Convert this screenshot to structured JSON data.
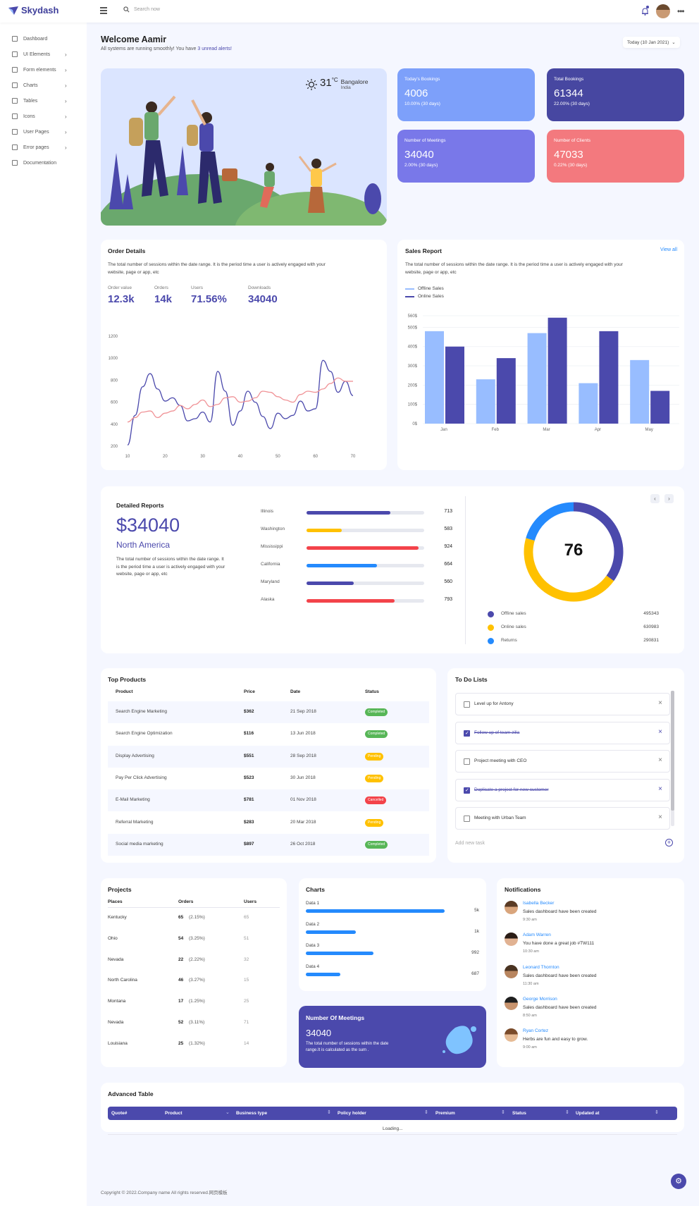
{
  "brand": {
    "name": "Skydash"
  },
  "header": {
    "search_placeholder": "Search now"
  },
  "sidebar": {
    "items": [
      {
        "label": "Dashboard",
        "icon": "dashboard-icon",
        "chevron": false
      },
      {
        "label": "UI Elements",
        "icon": "layers-icon",
        "chevron": true
      },
      {
        "label": "Form elements",
        "icon": "form-icon",
        "chevron": true
      },
      {
        "label": "Charts",
        "icon": "chart-icon",
        "chevron": true
      },
      {
        "label": "Tables",
        "icon": "table-icon",
        "chevron": true
      },
      {
        "label": "Icons",
        "icon": "icons-icon",
        "chevron": true
      },
      {
        "label": "User Pages",
        "icon": "user-icon",
        "chevron": true
      },
      {
        "label": "Error pages",
        "icon": "error-icon",
        "chevron": true
      },
      {
        "label": "Documentation",
        "icon": "doc-icon",
        "chevron": false
      }
    ]
  },
  "welcome": {
    "title": "Welcome Aamir",
    "subtitle_pre": "All systems are running smoothly! You have ",
    "subtitle_link": "3 unread alerts!",
    "date_label": "Today (10 Jan 2021)"
  },
  "weather": {
    "temp": "31",
    "unit": "C",
    "city": "Bangalore",
    "country": "India"
  },
  "stats": [
    {
      "label": "Today's Bookings",
      "value": "4006",
      "sub": "10.00% (30 days)",
      "color": "#7da0fa"
    },
    {
      "label": "Total Bookings",
      "value": "61344",
      "sub": "22.00% (30 days)",
      "color": "#4747a1"
    },
    {
      "label": "Number of Meetings",
      "value": "34040",
      "sub": "2.00% (30 days)",
      "color": "#7978e9"
    },
    {
      "label": "Number of Clients",
      "value": "47033",
      "sub": "0.22% (30 days)",
      "color": "#f3797e"
    }
  ],
  "order_details": {
    "title": "Order Details",
    "desc1": "The total number of sessions within the date range. It is the period time a user is actively engaged with your",
    "desc2": "website, page or app, etc",
    "metrics": [
      {
        "label": "Order value",
        "value": "12.3k"
      },
      {
        "label": "Orders",
        "value": "14k"
      },
      {
        "label": "Users",
        "value": "71.56%"
      },
      {
        "label": "Downloads",
        "value": "34040"
      }
    ]
  },
  "sales_report": {
    "title": "Sales Report",
    "view_all": "View all",
    "desc1": "The total number of sessions within the date range. It is the period time a user is actively engaged with your",
    "desc2": "website, page or app, etc"
  },
  "chart_data": [
    {
      "type": "line",
      "x": [
        10,
        12,
        14,
        16,
        18,
        20,
        22,
        24,
        26,
        28,
        30,
        32,
        34,
        36,
        38,
        40,
        42,
        44,
        46,
        48,
        50,
        52,
        54,
        56,
        58,
        60,
        62,
        64,
        66,
        68,
        70
      ],
      "series": [
        {
          "color": "#4b49ac",
          "values": [
            210,
            480,
            740,
            860,
            720,
            610,
            640,
            570,
            430,
            450,
            510,
            420,
            880,
            700,
            390,
            520,
            700,
            600,
            470,
            360,
            500,
            450,
            480,
            610,
            520,
            540,
            980,
            880,
            690,
            790,
            660
          ]
        },
        {
          "color": "#f09397",
          "values": [
            420,
            460,
            510,
            520,
            460,
            500,
            520,
            570,
            540,
            580,
            620,
            560,
            580,
            640,
            650,
            600,
            610,
            640,
            700,
            690,
            650,
            620,
            600,
            670,
            700,
            690,
            720,
            770,
            820,
            790,
            790
          ]
        }
      ],
      "xticks": [
        "10",
        "20",
        "30",
        "40",
        "50",
        "60",
        "70"
      ],
      "yticks": [
        "200",
        "400",
        "600",
        "800",
        "1000",
        "1200"
      ],
      "ylim": [
        200,
        1200
      ]
    },
    {
      "type": "bar",
      "categories": [
        "Jan",
        "Feb",
        "Mar",
        "Apr",
        "May"
      ],
      "series": [
        {
          "name": "Offline Sales",
          "color": "#98bdff",
          "values": [
            480,
            230,
            470,
            210,
            330
          ]
        },
        {
          "name": "Online Sales",
          "color": "#4b49ac",
          "values": [
            400,
            340,
            550,
            480,
            170
          ]
        }
      ],
      "yticks": [
        "0$",
        "100$",
        "200$",
        "300$",
        "400$",
        "500$",
        "560$"
      ],
      "ylim": [
        0,
        560
      ]
    },
    {
      "type": "pie",
      "center_label": "76",
      "slices": [
        {
          "label": "Offline sales",
          "value": 495343,
          "color": "#4b49ac"
        },
        {
          "label": "Online sales",
          "value": 630983,
          "color": "#ffc100"
        },
        {
          "label": "Returns",
          "value": 290831,
          "color": "#248afd"
        }
      ]
    }
  ],
  "detailed_reports": {
    "title": "Detailed Reports",
    "amount": "$34040",
    "region": "North America",
    "desc": [
      "The total number of sessions within the date range. It",
      "is the period time a user is actively engaged with your",
      "website, page or app, etc"
    ],
    "states": [
      {
        "name": "Illinois",
        "value": "713",
        "pct": 0.71,
        "color": "#4b49ac"
      },
      {
        "name": "Washington",
        "value": "583",
        "pct": 0.3,
        "color": "#ffc100"
      },
      {
        "name": "Mississippi",
        "value": "924",
        "pct": 0.95,
        "color": "#f3434a"
      },
      {
        "name": "California",
        "value": "664",
        "pct": 0.6,
        "color": "#248afd"
      },
      {
        "name": "Maryland",
        "value": "560",
        "pct": 0.4,
        "color": "#4b49ac"
      },
      {
        "name": "Alaska",
        "value": "793",
        "pct": 0.75,
        "color": "#f3434a"
      }
    ]
  },
  "top_products": {
    "title": "Top Products",
    "headers": [
      "Product",
      "Price",
      "Date",
      "Status"
    ],
    "rows": [
      {
        "product": "Search Engine Marketing",
        "price": "$362",
        "date": "21 Sep 2018",
        "status": "Completed",
        "color": "#57b657"
      },
      {
        "product": "Search Engine Optimization",
        "price": "$116",
        "date": "13 Jun 2018",
        "status": "Completed",
        "color": "#57b657"
      },
      {
        "product": "Display Advertising",
        "price": "$551",
        "date": "28 Sep 2018",
        "status": "Pending",
        "color": "#ffc100"
      },
      {
        "product": "Pay Per Click Advertising",
        "price": "$523",
        "date": "30 Jun 2018",
        "status": "Pending",
        "color": "#ffc100"
      },
      {
        "product": "E-Mail Marketing",
        "price": "$781",
        "date": "01 Nov 2018",
        "status": "Cancelled",
        "color": "#f3434a"
      },
      {
        "product": "Referral Marketing",
        "price": "$283",
        "date": "20 Mar 2018",
        "status": "Pending",
        "color": "#ffc100"
      },
      {
        "product": "Social media marketing",
        "price": "$897",
        "date": "26 Oct 2018",
        "status": "Completed",
        "color": "#57b657"
      }
    ]
  },
  "todo": {
    "title": "To Do Lists",
    "items": [
      {
        "text": "Level up for Antony",
        "done": false
      },
      {
        "text": "Follow up of team zilla",
        "done": true
      },
      {
        "text": "Project meeting with CEO",
        "done": false
      },
      {
        "text": "Duplicate a project for new customer",
        "done": true
      },
      {
        "text": "Meeting with Urban Team",
        "done": false
      }
    ],
    "add_placeholder": "Add new task"
  },
  "projects": {
    "title": "Projects",
    "headers": [
      "Places",
      "Orders",
      "Users"
    ],
    "rows": [
      {
        "place": "Kentucky",
        "orders": "65",
        "pct": "(2.15%)",
        "users": "65"
      },
      {
        "place": "Ohio",
        "orders": "54",
        "pct": "(3.25%)",
        "users": "51"
      },
      {
        "place": "Nevada",
        "orders": "22",
        "pct": "(2.22%)",
        "users": "32"
      },
      {
        "place": "North Carolina",
        "orders": "46",
        "pct": "(3.27%)",
        "users": "15"
      },
      {
        "place": "Montana",
        "orders": "17",
        "pct": "(1.25%)",
        "users": "25"
      },
      {
        "place": "Nevada",
        "orders": "52",
        "pct": "(3.11%)",
        "users": "71"
      },
      {
        "place": "Louisiana",
        "orders": "25",
        "pct": "(1.32%)",
        "users": "14"
      }
    ]
  },
  "charts_card": {
    "title": "Charts",
    "rows": [
      {
        "label": "Data 1",
        "value": "5k",
        "pct": 0.92
      },
      {
        "label": "Data 2",
        "value": "1k",
        "pct": 0.33
      },
      {
        "label": "Data 3",
        "value": "992",
        "pct": 0.45
      },
      {
        "label": "Data 4",
        "value": "687",
        "pct": 0.23
      }
    ]
  },
  "meetings_card": {
    "title": "Number Of Meetings",
    "value": "34040",
    "desc1": "The total number of sessions within the date",
    "desc2": "range.It is calculated as the sum ."
  },
  "notifications": {
    "title": "Notifications",
    "items": [
      {
        "name": "Isabella Becker",
        "message": "Sales dashboard have been created",
        "time": "9:30 am"
      },
      {
        "name": "Adam Warren",
        "message": "You have done a great job #TW111",
        "time": "10:30 am"
      },
      {
        "name": "Leonard Thornton",
        "message": "Sales dashboard have been created",
        "time": "11:30 am"
      },
      {
        "name": "George Morrison",
        "message": "Sales dashboard have been created",
        "time": "8:50 am"
      },
      {
        "name": "Ryan Cortez",
        "message": "Herbs are fun and easy to grow.",
        "time": "9:00 am"
      }
    ]
  },
  "advanced_table": {
    "title": "Advanced Table",
    "columns": [
      "Quote#",
      "Product",
      "Business type",
      "Policy holder",
      "Premium",
      "Status",
      "Updated at"
    ],
    "loading": "Loading..."
  },
  "footer": {
    "copyright": "Copyright © 2022.Company name All rights reserved.网页模板"
  }
}
